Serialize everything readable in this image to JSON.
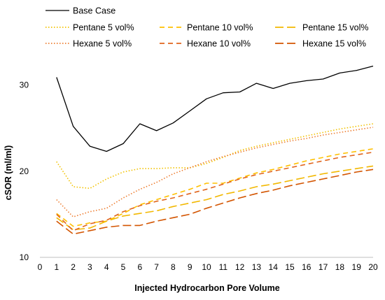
{
  "chart_data": {
    "type": "line",
    "xlabel": "Injected Hydrocarbon Pore Volume",
    "ylabel": "cSOR (ml/ml)",
    "xlim": [
      0,
      20
    ],
    "ylim": [
      10,
      35
    ],
    "x_ticks": [
      "0",
      "1",
      "2",
      "3",
      "4",
      "5",
      "6",
      "7",
      "8",
      "9",
      "10",
      "11",
      "12",
      "13",
      "14",
      "15",
      "16",
      "17",
      "18",
      "19",
      "20"
    ],
    "y_ticks": [
      "10",
      "20",
      "30"
    ],
    "grid": false,
    "legend_position": "top",
    "x": [
      1,
      2,
      3,
      4,
      5,
      6,
      7,
      8,
      9,
      10,
      11,
      12,
      13,
      14,
      15,
      16,
      17,
      18,
      19,
      20
    ],
    "series": [
      {
        "name": "Base Case",
        "color": "#000000",
        "style": "solid",
        "values": [
          30.9,
          25.2,
          22.9,
          22.3,
          23.2,
          25.5,
          24.7,
          25.6,
          27.0,
          28.4,
          29.1,
          29.2,
          30.2,
          29.6,
          30.2,
          30.5,
          30.7,
          31.4,
          31.7,
          32.2
        ]
      },
      {
        "name": "Pentane 5 vol%",
        "color": "#F2C200",
        "style": "dotted",
        "values": [
          21.1,
          18.2,
          18.0,
          19.1,
          19.9,
          20.3,
          20.3,
          20.4,
          20.4,
          20.9,
          21.6,
          22.4,
          22.9,
          23.3,
          23.7,
          24.1,
          24.5,
          24.9,
          25.2,
          25.5
        ]
      },
      {
        "name": "Pentane 10 vol%",
        "color": "#FFC000",
        "style": "dashed",
        "values": [
          15.1,
          13.6,
          14.0,
          14.2,
          15.1,
          16.1,
          16.7,
          17.3,
          17.9,
          18.6,
          18.6,
          19.2,
          19.8,
          20.2,
          20.7,
          21.2,
          21.6,
          22.0,
          22.3,
          22.6
        ]
      },
      {
        "name": "Pentane 15 vol%",
        "color": "#F2B800",
        "style": "longdash",
        "values": [
          14.6,
          13.2,
          13.4,
          14.2,
          14.8,
          15.1,
          15.4,
          15.9,
          16.3,
          16.7,
          17.3,
          17.7,
          18.2,
          18.5,
          18.9,
          19.3,
          19.7,
          20.0,
          20.3,
          20.6
        ]
      },
      {
        "name": "Hexane 5 vol%",
        "color": "#ED7D31",
        "style": "dotted",
        "values": [
          16.7,
          14.7,
          15.3,
          15.7,
          16.9,
          17.9,
          18.7,
          19.7,
          20.4,
          21.1,
          21.7,
          22.2,
          22.7,
          23.1,
          23.5,
          23.8,
          24.2,
          24.5,
          24.8,
          25.1
        ]
      },
      {
        "name": "Hexane 10 vol%",
        "color": "#E0641C",
        "style": "dashed",
        "values": [
          15.0,
          13.1,
          13.9,
          14.3,
          15.3,
          16.0,
          16.5,
          16.9,
          17.4,
          17.9,
          18.5,
          19.1,
          19.6,
          20.0,
          20.4,
          20.8,
          21.2,
          21.6,
          21.9,
          22.2
        ]
      },
      {
        "name": "Hexane 15 vol%",
        "color": "#D35400",
        "style": "longdash",
        "values": [
          14.2,
          12.7,
          13.1,
          13.5,
          13.7,
          13.7,
          14.2,
          14.6,
          15.0,
          15.7,
          16.3,
          16.9,
          17.4,
          17.8,
          18.3,
          18.7,
          19.1,
          19.5,
          19.9,
          20.2
        ]
      }
    ]
  }
}
